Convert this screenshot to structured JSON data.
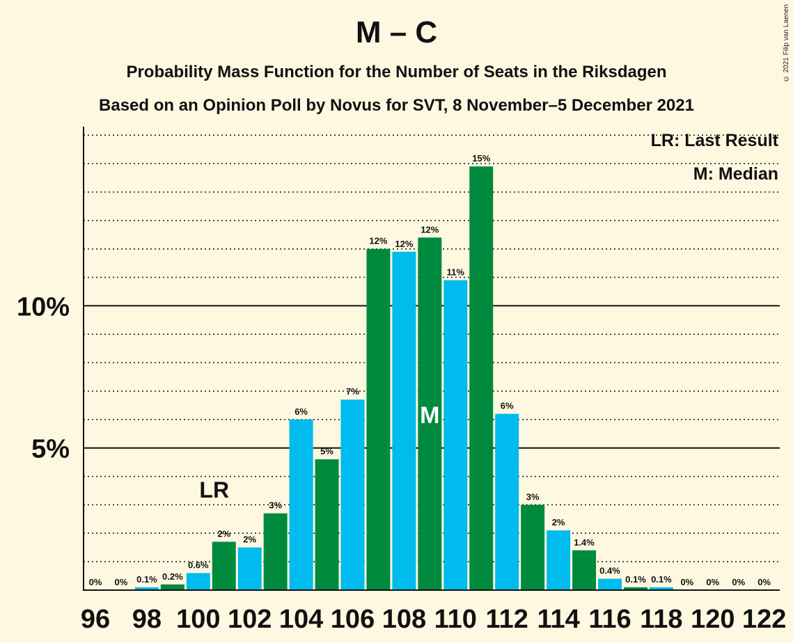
{
  "title": "M – C",
  "subtitle1": "Probability Mass Function for the Number of Seats in the Riksdagen",
  "subtitle2": "Based on an Opinion Poll by Novus for SVT, 8 November–5 December 2021",
  "copyright": "© 2021 Filip van Laenen",
  "legend": {
    "last_result": "LR: Last Result",
    "median": "M: Median"
  },
  "markers": {
    "lr_text": "LR",
    "median_text": "M",
    "lr_seat": 101,
    "median_seat": 109
  },
  "colors": {
    "green": "#008a3e",
    "blue": "#00bbee",
    "background": "#fff8e1"
  },
  "chart_data": {
    "type": "bar",
    "categories": [
      96,
      97,
      98,
      99,
      100,
      101,
      102,
      103,
      104,
      105,
      106,
      107,
      108,
      109,
      110,
      111,
      112,
      113,
      114,
      115,
      116,
      117,
      118,
      119,
      120,
      121,
      122
    ],
    "values": [
      0,
      0,
      0.1,
      0.2,
      0.6,
      1.7,
      1.5,
      2.7,
      6.0,
      4.6,
      6.7,
      12.0,
      11.9,
      12.4,
      10.9,
      14.9,
      6.2,
      3.0,
      2.1,
      1.4,
      0.4,
      0.1,
      0.1,
      0,
      0,
      0,
      0
    ],
    "value_labels": [
      "0%",
      "0%",
      "0.1%",
      "0.2%",
      "0.6%",
      "2%",
      "2%",
      "3%",
      "6%",
      "5%",
      "7%",
      "12%",
      "12%",
      "12%",
      "11%",
      "15%",
      "6%",
      "3%",
      "2%",
      "1.4%",
      "0.4%",
      "0.1%",
      "0.1%",
      "0%",
      "0%",
      "0%",
      "0%"
    ],
    "x_tick_labels": [
      "96",
      "98",
      "100",
      "102",
      "104",
      "106",
      "108",
      "110",
      "112",
      "114",
      "116",
      "118",
      "120",
      "122"
    ],
    "y_tick_labels": [
      "5%",
      "10%"
    ],
    "y_ticks": [
      5,
      10
    ],
    "ylim": [
      0,
      16.3
    ],
    "minor_grid_step": 1,
    "grid": true
  }
}
